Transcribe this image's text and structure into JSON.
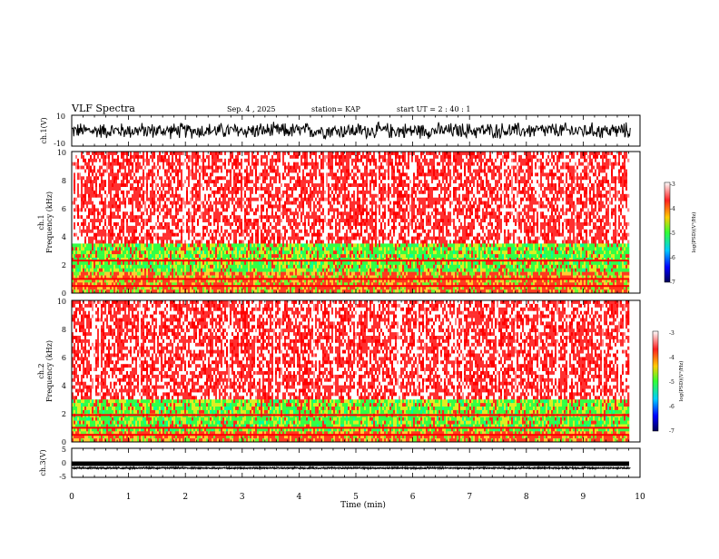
{
  "header": {
    "title": "VLF Spectra",
    "date": "Sep. 4 , 2025",
    "station": "station= KAP",
    "start": "start  UT =   2 : 40 : 1"
  },
  "chart_data": [
    {
      "type": "line",
      "id": "ch1_waveform",
      "ylabel": "ch.1(V)",
      "ylim": [
        -10,
        10
      ],
      "ytick_labels": [
        "10",
        "-10"
      ],
      "xlim": [
        0,
        10
      ],
      "baseline": 0,
      "amplitude": 6,
      "color": "#000000"
    },
    {
      "type": "heatmap",
      "id": "ch1_spectrogram",
      "ylabel_channel": "ch.1",
      "ylabel": "Frequency  (kHz)",
      "ylim": [
        0,
        10
      ],
      "ytick_labels": [
        "0",
        "2",
        "4",
        "6",
        "8",
        "10"
      ],
      "xlim": [
        0,
        9.8
      ],
      "bands_khz": {
        "quiet_top": 3.5,
        "green_low": 1.5,
        "red_lines": [
          0.5,
          1.0,
          2.3
        ]
      },
      "colorbar": {
        "label": "log(PSD)(V²/Hz)",
        "range": [
          -7,
          -3
        ],
        "tick_labels": [
          "-3",
          "-4",
          "-5",
          "-6",
          "-7"
        ],
        "colormap": [
          "#ffffff",
          "#ff0000",
          "#ffff00",
          "#00ff00",
          "#00aaff",
          "#0000ff",
          "#000066"
        ]
      }
    },
    {
      "type": "heatmap",
      "id": "ch2_spectrogram",
      "ylabel_channel": "ch.2",
      "ylabel": "Frequency  (kHz)",
      "ylim": [
        0,
        10
      ],
      "ytick_labels": [
        "0",
        "2",
        "4",
        "6",
        "8",
        "10"
      ],
      "xlim": [
        0,
        9.8
      ],
      "bands_khz": {
        "quiet_top": 3.0,
        "green_low": 0.8,
        "red_lines": [
          0.5,
          1.0,
          1.9
        ]
      },
      "colorbar": {
        "label": "log(PSD)(V²/Hz)",
        "range": [
          -7,
          -3
        ],
        "tick_labels": [
          "-3",
          "-4",
          "-5",
          "-6",
          "-7"
        ],
        "colormap": [
          "#ffffff",
          "#ff0000",
          "#ffff00",
          "#00ff00",
          "#00aaff",
          "#0000ff",
          "#000066"
        ]
      }
    },
    {
      "type": "line",
      "id": "ch3_waveform",
      "ylabel": "ch.3(V)",
      "ylim": [
        -5,
        5
      ],
      "ytick_labels": [
        "5",
        "0",
        "-5"
      ],
      "xlim": [
        0,
        10
      ],
      "baseline": -1.8,
      "amplitude": 0.3,
      "color": "#000000"
    }
  ],
  "xaxis": {
    "label": "Time  (min)",
    "range": [
      0,
      10
    ],
    "tick_labels": [
      "0",
      "1",
      "2",
      "3",
      "4",
      "5",
      "6",
      "7",
      "8",
      "9",
      "10"
    ]
  }
}
